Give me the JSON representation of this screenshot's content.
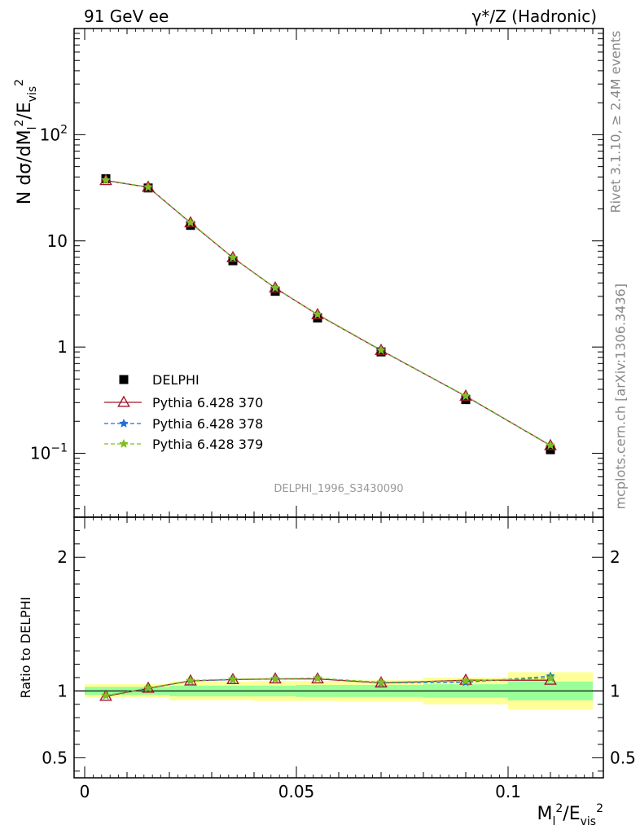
{
  "header": {
    "left_label": "91 GeV ee",
    "right_label": "γ*/Z (Hadronic)"
  },
  "side_labels": {
    "rivet": "Rivet 3.1.10, ≥ 2.4M events",
    "mcplots": "mcplots.cern.ch [arXiv:1306.3436]"
  },
  "watermark": "DELPHI_1996_S3430090",
  "colors": {
    "data": "#000000",
    "pythia_370": "#a3162a",
    "pythia_378": "#1f6fd6",
    "pythia_379": "#7fbf1f",
    "band_inner": "#99ff99",
    "band_outer": "#ffff99"
  },
  "chart_data": [
    {
      "type": "scatter",
      "panel": "main",
      "ylabel": "N dσ/dM_l^2/E_vis^2",
      "yscale": "log",
      "ylim": [
        0.025,
        1000
      ],
      "xlim": [
        -0.0025,
        0.1225
      ],
      "ytick_labels": [
        "10⁻¹",
        "1",
        "10",
        "10²"
      ],
      "legend_placement": "middle-left",
      "x": [
        0.005,
        0.015,
        0.025,
        0.035,
        0.045,
        0.055,
        0.07,
        0.09,
        0.11
      ],
      "series": [
        {
          "name": "DELPHI",
          "marker": "square",
          "values": [
            38.5,
            31.5,
            14.0,
            6.5,
            3.35,
            1.88,
            0.9,
            0.32,
            0.108
          ]
        },
        {
          "name": "Pythia 6.428 370",
          "marker": "triangle",
          "line": "solid",
          "values": [
            37.0,
            32.0,
            14.8,
            6.95,
            3.6,
            2.02,
            0.93,
            0.345,
            0.118
          ]
        },
        {
          "name": "Pythia 6.428 378",
          "marker": "star",
          "line": "dashed",
          "values": [
            37.2,
            32.0,
            14.8,
            6.95,
            3.6,
            2.03,
            0.935,
            0.344,
            0.119
          ]
        },
        {
          "name": "Pythia 6.428 379",
          "marker": "star",
          "line": "dashed",
          "values": [
            37.3,
            32.1,
            14.9,
            6.97,
            3.61,
            2.03,
            0.935,
            0.346,
            0.119
          ]
        }
      ]
    },
    {
      "type": "line",
      "panel": "ratio",
      "ylabel": "Ratio to DELPHI",
      "xlabel": "M_l^2/E_vis^2",
      "ylim": [
        0.35,
        2.3
      ],
      "xlim": [
        -0.0025,
        0.1225
      ],
      "ytick_labels": [
        "0.5",
        "1",
        "2"
      ],
      "xtick_labels": [
        "0",
        "0.05",
        "0.1"
      ],
      "x": [
        0.005,
        0.015,
        0.025,
        0.035,
        0.045,
        0.055,
        0.07,
        0.09,
        0.11
      ],
      "bands": {
        "edges": [
          0,
          0.01,
          0.02,
          0.03,
          0.04,
          0.05,
          0.06,
          0.08,
          0.1,
          0.12
        ],
        "inner": [
          [
            0.97,
            1.03
          ],
          [
            0.97,
            1.03
          ],
          [
            0.96,
            1.04
          ],
          [
            0.96,
            1.04
          ],
          [
            0.96,
            1.04
          ],
          [
            0.955,
            1.045
          ],
          [
            0.955,
            1.045
          ],
          [
            0.95,
            1.05
          ],
          [
            0.93,
            1.07
          ]
        ],
        "outer": [
          [
            0.95,
            1.05
          ],
          [
            0.95,
            1.05
          ],
          [
            0.93,
            1.07
          ],
          [
            0.93,
            1.07
          ],
          [
            0.925,
            1.075
          ],
          [
            0.925,
            1.075
          ],
          [
            0.92,
            1.08
          ],
          [
            0.9,
            1.1
          ],
          [
            0.86,
            1.14
          ]
        ]
      },
      "series": [
        {
          "name": "Pythia 6.428 370",
          "values": [
            0.96,
            1.02,
            1.075,
            1.085,
            1.09,
            1.09,
            1.06,
            1.08,
            1.08
          ]
        },
        {
          "name": "Pythia 6.428 378",
          "values": [
            0.965,
            1.02,
            1.075,
            1.085,
            1.09,
            1.095,
            1.06,
            1.065,
            1.11
          ]
        },
        {
          "name": "Pythia 6.428 379",
          "values": [
            0.965,
            1.022,
            1.078,
            1.088,
            1.092,
            1.095,
            1.065,
            1.075,
            1.095
          ]
        }
      ]
    }
  ]
}
